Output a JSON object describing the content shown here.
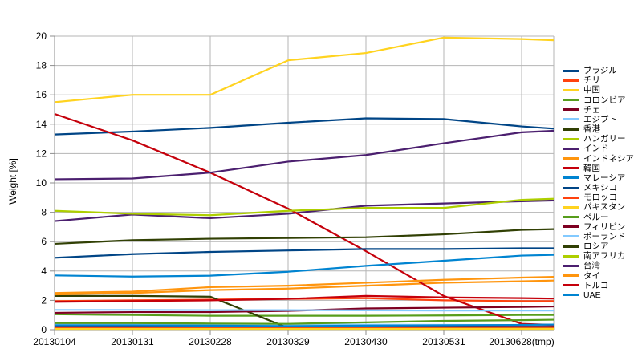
{
  "chart_data": {
    "type": "line",
    "title": "",
    "xlabel": "",
    "ylabel": "Weight [%]",
    "ylim": [
      0,
      20
    ],
    "ytick_step": 2,
    "grid": true,
    "legend_position": "right",
    "x_labels": [
      "20130104",
      "20130131",
      "20130228",
      "20130329",
      "20130430",
      "20130531",
      "20130628(tmp)"
    ],
    "series": [
      {
        "name": "ブラジル",
        "color": "#004586",
        "values": [
          13.3,
          13.5,
          13.75,
          14.1,
          14.4,
          14.35,
          13.85
        ],
        "edge": 13.7
      },
      {
        "name": "チリ",
        "color": "#FF420E",
        "values": [
          1.95,
          2.0,
          2.05,
          2.1,
          2.15,
          2.0,
          1.95
        ],
        "edge": 1.95
      },
      {
        "name": "中国",
        "color": "#FFD320",
        "values": [
          15.5,
          16.0,
          16.0,
          18.35,
          18.85,
          19.9,
          19.8
        ],
        "edge": 19.72
      },
      {
        "name": "コロンビア",
        "color": "#579D1C",
        "values": [
          1.05,
          1.0,
          0.95,
          0.95,
          0.95,
          0.97,
          1.0
        ],
        "edge": 1.0
      },
      {
        "name": "チェコ",
        "color": "#7E0021",
        "values": [
          0.28,
          0.27,
          0.26,
          0.25,
          0.24,
          0.23,
          0.22
        ],
        "edge": 0.22
      },
      {
        "name": "エジプト",
        "color": "#83CAFF",
        "values": [
          0.38,
          0.37,
          0.36,
          0.35,
          0.34,
          0.33,
          0.32
        ],
        "edge": 0.32
      },
      {
        "name": "香港",
        "color": "#314004",
        "values": [
          2.3,
          2.3,
          2.25,
          0.12,
          0.06,
          0.05,
          0.05
        ],
        "edge": 0.05
      },
      {
        "name": "ハンガリー",
        "color": "#AECF00",
        "values": [
          0.12,
          0.12,
          0.12,
          0.12,
          0.13,
          0.14,
          0.15
        ],
        "edge": 0.15
      },
      {
        "name": "インド",
        "color": "#4B1F6F",
        "values": [
          7.4,
          7.85,
          7.6,
          7.9,
          8.45,
          8.6,
          8.75
        ],
        "edge": 8.8
      },
      {
        "name": "インドネシア",
        "color": "#FF950E",
        "values": [
          2.4,
          2.5,
          2.7,
          2.8,
          3.0,
          3.2,
          3.3
        ],
        "edge": 3.35
      },
      {
        "name": "韓国",
        "color": "#C5000B",
        "values": [
          14.7,
          12.9,
          10.7,
          8.25,
          5.35,
          2.3,
          0.4
        ],
        "edge": 0.32
      },
      {
        "name": "マレーシア",
        "color": "#0084D1",
        "values": [
          3.7,
          3.62,
          3.68,
          3.95,
          4.35,
          4.7,
          5.05
        ],
        "edge": 5.1
      },
      {
        "name": "メキシコ",
        "color": "#004586",
        "values": [
          4.9,
          5.15,
          5.3,
          5.4,
          5.5,
          5.5,
          5.55
        ],
        "edge": 5.55
      },
      {
        "name": "モロッコ",
        "color": "#FF420E",
        "values": [
          0.1,
          0.1,
          0.1,
          0.1,
          0.1,
          0.09,
          0.09
        ],
        "edge": 0.09
      },
      {
        "name": "パキスタン",
        "color": "#FFD320",
        "values": [
          0.05,
          0.05,
          0.05,
          0.05,
          0.05,
          0.05,
          0.05
        ],
        "edge": 0.05
      },
      {
        "name": "ペルー",
        "color": "#579D1C",
        "values": [
          0.45,
          0.45,
          0.42,
          0.4,
          0.5,
          0.6,
          0.65
        ],
        "edge": 0.68
      },
      {
        "name": "フィリピン",
        "color": "#7E0021",
        "values": [
          1.15,
          1.2,
          1.2,
          1.28,
          1.45,
          1.5,
          1.55
        ],
        "edge": 1.58
      },
      {
        "name": "ポーランド",
        "color": "#83CAFF",
        "values": [
          1.35,
          1.35,
          1.33,
          1.33,
          1.32,
          1.3,
          1.3
        ],
        "edge": 1.3
      },
      {
        "name": "ロシア",
        "color": "#314004",
        "values": [
          5.85,
          6.1,
          6.2,
          6.25,
          6.3,
          6.5,
          6.8
        ],
        "edge": 6.85
      },
      {
        "name": "南アフリカ",
        "color": "#AECF00",
        "values": [
          8.1,
          7.9,
          7.8,
          8.1,
          8.3,
          8.3,
          8.85
        ],
        "edge": 8.92
      },
      {
        "name": "台湾",
        "color": "#4B1F6F",
        "values": [
          10.25,
          10.3,
          10.7,
          11.45,
          11.9,
          12.7,
          13.45
        ],
        "edge": 13.55
      },
      {
        "name": "タイ",
        "color": "#FF950E",
        "values": [
          2.5,
          2.6,
          2.9,
          3.0,
          3.2,
          3.4,
          3.55
        ],
        "edge": 3.6
      },
      {
        "name": "トルコ",
        "color": "#C5000B",
        "values": [
          1.9,
          1.95,
          2.0,
          2.1,
          2.3,
          2.2,
          2.15
        ],
        "edge": 2.12
      },
      {
        "name": "UAE",
        "color": "#0084D1",
        "values": [
          0.3,
          0.3,
          0.28,
          0.25,
          0.28,
          0.3,
          0.33
        ],
        "edge": 0.35
      }
    ],
    "colors": {
      "grid": "#b5b5b5",
      "axis": "#8e8e8e",
      "text": "#000000",
      "background": "#ffffff"
    }
  }
}
